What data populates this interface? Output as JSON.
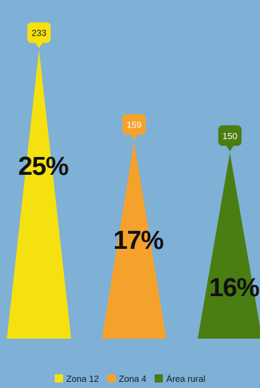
{
  "chart_data": {
    "type": "bar",
    "categories": [
      "Zona 12",
      "Zona 4",
      "Área rural"
    ],
    "values": [
      233,
      159,
      150
    ],
    "value_labels": [
      "233",
      "159",
      "150"
    ],
    "percent_labels": [
      "25%",
      "17%",
      "16%"
    ],
    "colors": [
      "#f5e10f",
      "#f5a22c",
      "#4a7d12"
    ],
    "ylim": [
      0,
      240
    ],
    "legend_position": "bottom-center",
    "grid": false
  }
}
